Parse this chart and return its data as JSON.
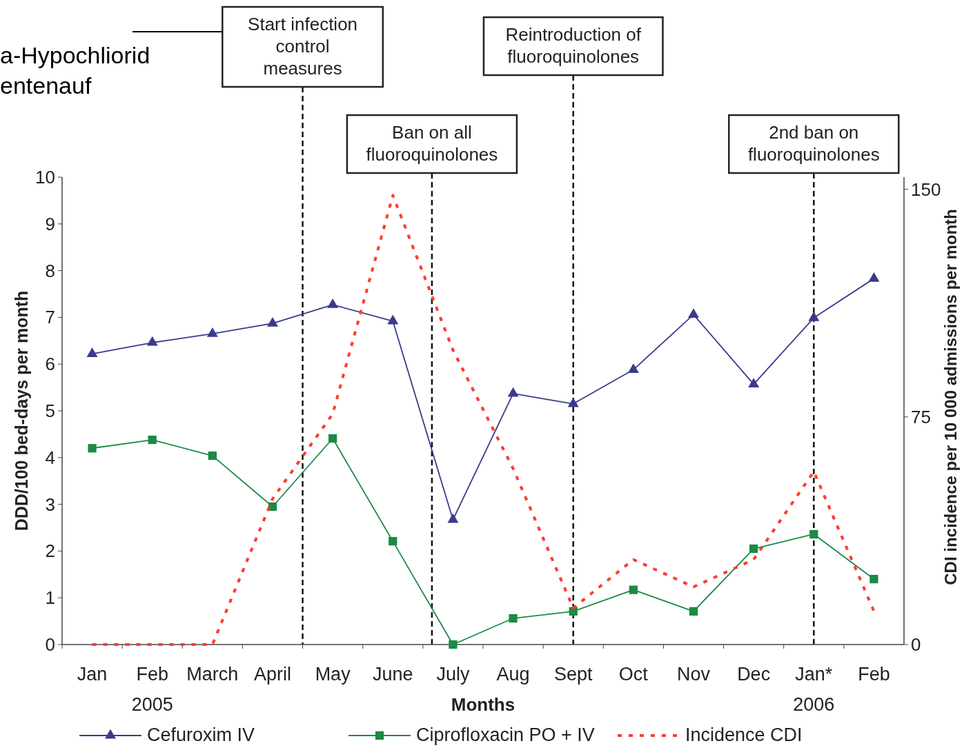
{
  "chart_data": {
    "type": "line",
    "xlabel": "Months",
    "ylabel": "DDD/100 bed-days per month",
    "y2label": "CDI incidence per 10 000 admissions per month",
    "categories": [
      "Jan",
      "Feb\n2005",
      "March",
      "April",
      "May",
      "June",
      "July",
      "Aug",
      "Sept",
      "Oct",
      "Nov",
      "Dec",
      "Jan*\n2006",
      "Feb"
    ],
    "ylim": [
      0,
      10
    ],
    "yticks": [
      0,
      1,
      2,
      3,
      4,
      5,
      6,
      7,
      8,
      9,
      10
    ],
    "y2lim": [
      0,
      154
    ],
    "y2ticks": [
      0,
      75,
      150
    ],
    "series": [
      {
        "name": "Cefuroxim IV",
        "color": "#3a3a8c",
        "marker": "triangle",
        "line_style": "solid",
        "values": [
          6.22,
          6.46,
          6.65,
          6.87,
          7.27,
          6.92,
          2.67,
          5.37,
          5.15,
          5.88,
          7.06,
          5.57,
          6.99,
          7.83
        ]
      },
      {
        "name": "Ciprofloxacin PO + IV",
        "color": "#1a8a45",
        "marker": "square",
        "line_style": "solid",
        "values": [
          4.2,
          4.38,
          4.04,
          2.95,
          4.41,
          2.21,
          0,
          0.56,
          0.71,
          1.17,
          0.71,
          2.05,
          2.36,
          1.4
        ]
      },
      {
        "name": "Incidence CDI",
        "color": "#ff3b30",
        "marker": "none",
        "line_style": "dotted",
        "axis": "y2",
        "values": [
          0,
          0,
          0,
          48,
          76,
          148,
          97,
          58,
          12,
          28,
          19,
          28,
          57,
          11
        ]
      }
    ],
    "ref_lines": [
      {
        "axis": "x",
        "value": "Sept",
        "label": "Reintroduction of\nfluoroquinolones",
        "line_style": "dashed",
        "color": "#111111"
      },
      {
        "axis": "x",
        "value": "Jan*\n2006",
        "label": "2nd ban on\nfluoroquinolones",
        "line_style": "dashed",
        "color": "#111111"
      }
    ],
    "annotations": [
      "a-Hypochliorid",
      "entenauf",
      "Start infection\ncontrol\nmeasures",
      "Ban on all\nfluoroquinolones"
    ],
    "legend": "bottom",
    "grid": false
  }
}
